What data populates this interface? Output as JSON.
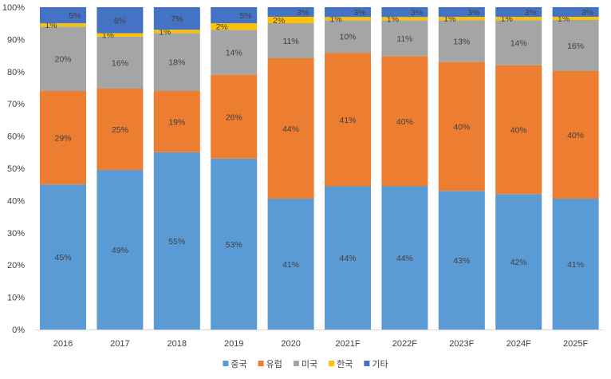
{
  "chart_data": {
    "type": "bar",
    "stacked": "percent",
    "categories": [
      "2016",
      "2017",
      "2018",
      "2019",
      "2020",
      "2021F",
      "2022F",
      "2023F",
      "2024F",
      "2025F"
    ],
    "series": [
      {
        "name": "중국",
        "color": "#5B9BD5",
        "values": [
          45,
          49,
          55,
          53,
          41,
          44,
          44,
          43,
          42,
          41
        ]
      },
      {
        "name": "유럽",
        "color": "#ED7D31",
        "values": [
          29,
          25,
          19,
          26,
          44,
          41,
          40,
          40,
          40,
          40
        ]
      },
      {
        "name": "미국",
        "color": "#A5A5A5",
        "values": [
          20,
          16,
          18,
          14,
          11,
          10,
          11,
          13,
          14,
          16
        ]
      },
      {
        "name": "한국",
        "color": "#FFC000",
        "values": [
          1,
          1,
          1,
          2,
          2,
          1,
          1,
          1,
          1,
          1
        ]
      },
      {
        "name": "기타",
        "color": "#4472C4",
        "values": [
          5,
          8,
          7,
          5,
          3,
          3,
          3,
          3,
          3,
          3
        ]
      }
    ],
    "yticks": [
      "0%",
      "10%",
      "20%",
      "30%",
      "40%",
      "50%",
      "60%",
      "70%",
      "80%",
      "90%",
      "100%"
    ],
    "ylim": [
      0,
      100
    ],
    "value_suffix": "%",
    "grid": false,
    "legend": "bottom"
  }
}
